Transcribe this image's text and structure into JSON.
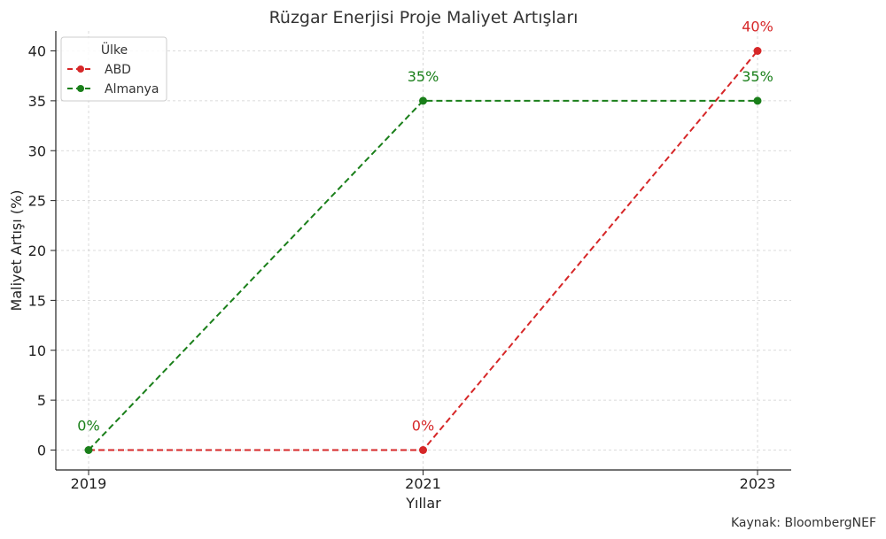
{
  "colors": {
    "ABD": "#d62728",
    "Almanya": "#1a7f1a"
  },
  "chart_data": {
    "type": "line",
    "title": "Rüzgar Enerjisi Proje Maliyet Artışları",
    "xlabel": "Yıllar",
    "ylabel": "Maliyet Artışı (%)",
    "x": [
      2019,
      2021,
      2023
    ],
    "x_tick_labels": [
      "2019",
      "2021",
      "2023"
    ],
    "ylim": [
      -2,
      42
    ],
    "y_ticks": [
      0,
      5,
      10,
      15,
      20,
      25,
      30,
      35,
      40
    ],
    "grid": true,
    "legend": {
      "title": "Ülke",
      "placement": "top-left"
    },
    "series": [
      {
        "name": "ABD",
        "x": [
          2021,
          2023
        ],
        "values": [
          0,
          40
        ],
        "pre": {
          "x": 2019,
          "value": 0
        },
        "labels": [
          "0%",
          "40%"
        ]
      },
      {
        "name": "Almanya",
        "x": [
          2019,
          2021,
          2023
        ],
        "values": [
          0,
          35,
          35
        ],
        "labels": [
          "0%",
          "35%",
          "35%"
        ]
      }
    ]
  },
  "source_note": "Kaynak: BloombergNEF"
}
